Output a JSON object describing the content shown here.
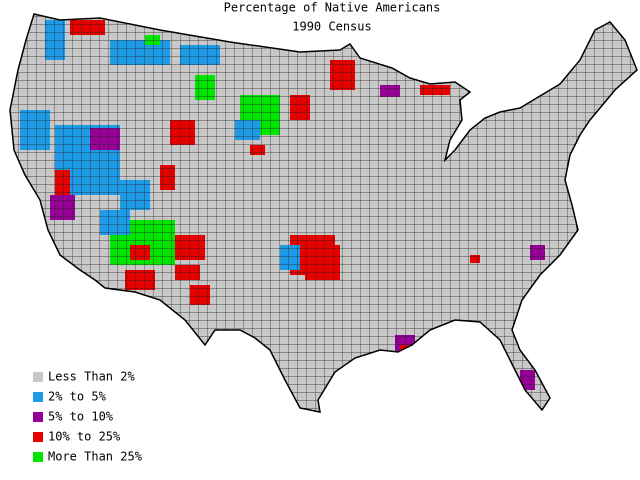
{
  "header": {
    "title": "Percentage of Native Americans",
    "subtitle": "1990 Census"
  },
  "legend": [
    {
      "label": "Less Than 2%",
      "color": "#c8c8c8"
    },
    {
      "label": "2% to 5%",
      "color": "#1e9be6"
    },
    {
      "label": "5% to 10%",
      "color": "#960096"
    },
    {
      "label": "10% to 25%",
      "color": "#e60000"
    },
    {
      "label": "More Than 25%",
      "color": "#00e600"
    }
  ]
}
